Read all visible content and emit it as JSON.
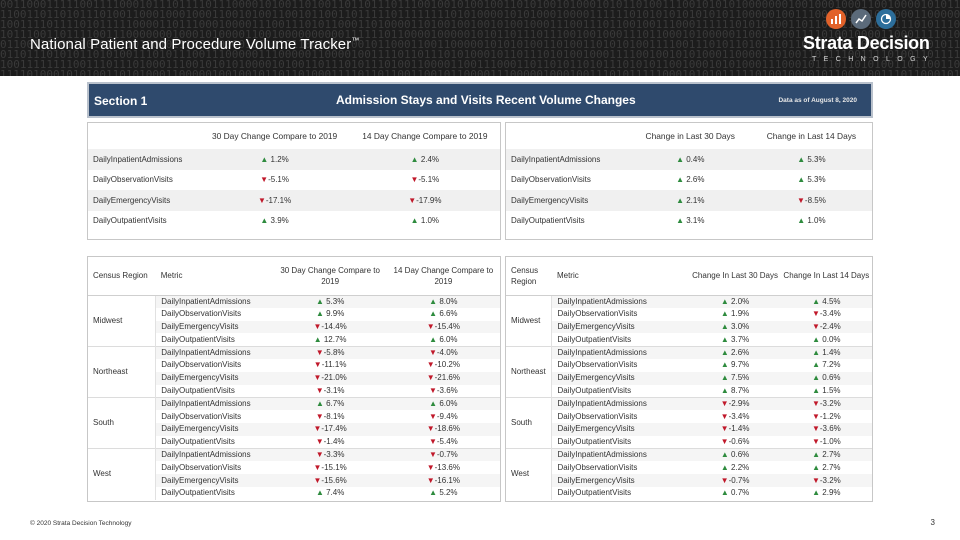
{
  "deck": {
    "title": "National Patient and Procedure Volume Tracker",
    "trademark": "™",
    "logo_name": "Strata Decision",
    "logo_sub": "TECHNOLOGY",
    "logo_icons": [
      "bar-chart-icon",
      "trend-line-icon",
      "pie-chart-icon"
    ],
    "footer_copyright": "© 2020 Strata Decision Technology",
    "page_number": "3"
  },
  "colors": {
    "header_blue": "#2f4a6d",
    "up_green": "#2e8b3e",
    "down_red": "#c0182a",
    "band_dark": "#1c1c1c"
  },
  "section": {
    "label": "Section 1",
    "title": "Admission Stays and Visits Recent Volume Changes",
    "as_of": "Data as of August 8, 2020"
  },
  "summary_left": {
    "headers": [
      "30 Day Change Compare to 2019",
      "14 Day Change Compare to 2019"
    ],
    "rows": [
      {
        "metric": "DailyInpatientAdmissions",
        "c1": {
          "dir": "up",
          "v": "1.2%"
        },
        "c2": {
          "dir": "up",
          "v": "2.4%"
        }
      },
      {
        "metric": "DailyObservationVisits",
        "c1": {
          "dir": "down",
          "v": "-5.1%"
        },
        "c2": {
          "dir": "down",
          "v": "-5.1%"
        }
      },
      {
        "metric": "DailyEmergencyVisits",
        "c1": {
          "dir": "down",
          "v": "-17.1%"
        },
        "c2": {
          "dir": "down",
          "v": "-17.9%"
        }
      },
      {
        "metric": "DailyOutpatientVisits",
        "c1": {
          "dir": "up",
          "v": "3.9%"
        },
        "c2": {
          "dir": "up",
          "v": "1.0%"
        }
      }
    ]
  },
  "summary_right": {
    "headers": [
      "Change in Last 30 Days",
      "Change in Last 14 Days"
    ],
    "rows": [
      {
        "metric": "DailyInpatientAdmissions",
        "c1": {
          "dir": "up",
          "v": "0.4%"
        },
        "c2": {
          "dir": "up",
          "v": "5.3%"
        }
      },
      {
        "metric": "DailyObservationVisits",
        "c1": {
          "dir": "up",
          "v": "2.6%"
        },
        "c2": {
          "dir": "up",
          "v": "5.3%"
        }
      },
      {
        "metric": "DailyEmergencyVisits",
        "c1": {
          "dir": "up",
          "v": "2.1%"
        },
        "c2": {
          "dir": "down",
          "v": "-8.5%"
        }
      },
      {
        "metric": "DailyOutpatientVisits",
        "c1": {
          "dir": "up",
          "v": "3.1%"
        },
        "c2": {
          "dir": "up",
          "v": "1.0%"
        }
      }
    ]
  },
  "detail_left": {
    "headers": {
      "region": "Census Region",
      "metric": "Metric",
      "c1": "30 Day Change Compare to 2019",
      "c2": "14 Day Change Compare to 2019"
    },
    "groups": [
      {
        "region": "Midwest",
        "rows": [
          {
            "metric": "DailyInpatientAdmissions",
            "c1": {
              "dir": "up",
              "v": "5.3%"
            },
            "c2": {
              "dir": "up",
              "v": "8.0%"
            }
          },
          {
            "metric": "DailyObservationVisits",
            "c1": {
              "dir": "up",
              "v": "9.9%"
            },
            "c2": {
              "dir": "up",
              "v": "6.6%"
            }
          },
          {
            "metric": "DailyEmergencyVisits",
            "c1": {
              "dir": "down",
              "v": "-14.4%"
            },
            "c2": {
              "dir": "down",
              "v": "-15.4%"
            }
          },
          {
            "metric": "DailyOutpatientVisits",
            "c1": {
              "dir": "up",
              "v": "12.7%"
            },
            "c2": {
              "dir": "up",
              "v": "6.0%"
            }
          }
        ]
      },
      {
        "region": "Northeast",
        "rows": [
          {
            "metric": "DailyInpatientAdmissions",
            "c1": {
              "dir": "down",
              "v": "-5.8%"
            },
            "c2": {
              "dir": "down",
              "v": "-4.0%"
            }
          },
          {
            "metric": "DailyObservationVisits",
            "c1": {
              "dir": "down",
              "v": "-11.1%"
            },
            "c2": {
              "dir": "down",
              "v": "-10.2%"
            }
          },
          {
            "metric": "DailyEmergencyVisits",
            "c1": {
              "dir": "down",
              "v": "-21.0%"
            },
            "c2": {
              "dir": "down",
              "v": "-21.6%"
            }
          },
          {
            "metric": "DailyOutpatientVisits",
            "c1": {
              "dir": "down",
              "v": "-3.1%"
            },
            "c2": {
              "dir": "down",
              "v": "-3.6%"
            }
          }
        ]
      },
      {
        "region": "South",
        "rows": [
          {
            "metric": "DailyInpatientAdmissions",
            "c1": {
              "dir": "up",
              "v": "6.7%"
            },
            "c2": {
              "dir": "up",
              "v": "6.0%"
            }
          },
          {
            "metric": "DailyObservationVisits",
            "c1": {
              "dir": "down",
              "v": "-8.1%"
            },
            "c2": {
              "dir": "down",
              "v": "-9.4%"
            }
          },
          {
            "metric": "DailyEmergencyVisits",
            "c1": {
              "dir": "down",
              "v": "-17.4%"
            },
            "c2": {
              "dir": "down",
              "v": "-18.6%"
            }
          },
          {
            "metric": "DailyOutpatientVisits",
            "c1": {
              "dir": "down",
              "v": "-1.4%"
            },
            "c2": {
              "dir": "down",
              "v": "-5.4%"
            }
          }
        ]
      },
      {
        "region": "West",
        "rows": [
          {
            "metric": "DailyInpatientAdmissions",
            "c1": {
              "dir": "down",
              "v": "-3.3%"
            },
            "c2": {
              "dir": "down",
              "v": "-0.7%"
            }
          },
          {
            "metric": "DailyObservationVisits",
            "c1": {
              "dir": "down",
              "v": "-15.1%"
            },
            "c2": {
              "dir": "down",
              "v": "-13.6%"
            }
          },
          {
            "metric": "DailyEmergencyVisits",
            "c1": {
              "dir": "down",
              "v": "-15.6%"
            },
            "c2": {
              "dir": "down",
              "v": "-16.1%"
            }
          },
          {
            "metric": "DailyOutpatientVisits",
            "c1": {
              "dir": "up",
              "v": "7.4%"
            },
            "c2": {
              "dir": "up",
              "v": "5.2%"
            }
          }
        ]
      }
    ]
  },
  "detail_right": {
    "headers": {
      "region": "Census Region",
      "metric": "Metric",
      "c1": "Change In Last 30 Days",
      "c2": "Change In Last 14 Days"
    },
    "groups": [
      {
        "region": "Midwest",
        "rows": [
          {
            "metric": "DailyInpatientAdmissions",
            "c1": {
              "dir": "up",
              "v": "2.0%"
            },
            "c2": {
              "dir": "up",
              "v": "4.5%"
            }
          },
          {
            "metric": "DailyObservationVisits",
            "c1": {
              "dir": "up",
              "v": "1.9%"
            },
            "c2": {
              "dir": "down",
              "v": "-3.4%"
            }
          },
          {
            "metric": "DailyEmergencyVisits",
            "c1": {
              "dir": "up",
              "v": "3.0%"
            },
            "c2": {
              "dir": "down",
              "v": "-2.4%"
            }
          },
          {
            "metric": "DailyOutpatientVisits",
            "c1": {
              "dir": "up",
              "v": "3.7%"
            },
            "c2": {
              "dir": "up",
              "v": "0.0%"
            }
          }
        ]
      },
      {
        "region": "Northeast",
        "rows": [
          {
            "metric": "DailyInpatientAdmissions",
            "c1": {
              "dir": "up",
              "v": "2.6%"
            },
            "c2": {
              "dir": "up",
              "v": "1.4%"
            }
          },
          {
            "metric": "DailyObservationVisits",
            "c1": {
              "dir": "up",
              "v": "9.7%"
            },
            "c2": {
              "dir": "up",
              "v": "7.2%"
            }
          },
          {
            "metric": "DailyEmergencyVisits",
            "c1": {
              "dir": "up",
              "v": "7.5%"
            },
            "c2": {
              "dir": "up",
              "v": "0.6%"
            }
          },
          {
            "metric": "DailyOutpatientVisits",
            "c1": {
              "dir": "up",
              "v": "8.7%"
            },
            "c2": {
              "dir": "up",
              "v": "1.5%"
            }
          }
        ]
      },
      {
        "region": "South",
        "rows": [
          {
            "metric": "DailyInpatientAdmissions",
            "c1": {
              "dir": "down",
              "v": "-2.9%"
            },
            "c2": {
              "dir": "down",
              "v": "-3.2%"
            }
          },
          {
            "metric": "DailyObservationVisits",
            "c1": {
              "dir": "down",
              "v": "-3.4%"
            },
            "c2": {
              "dir": "down",
              "v": "-1.2%"
            }
          },
          {
            "metric": "DailyEmergencyVisits",
            "c1": {
              "dir": "down",
              "v": "-1.4%"
            },
            "c2": {
              "dir": "down",
              "v": "-3.6%"
            }
          },
          {
            "metric": "DailyOutpatientVisits",
            "c1": {
              "dir": "down",
              "v": "-0.6%"
            },
            "c2": {
              "dir": "down",
              "v": "-1.0%"
            }
          }
        ]
      },
      {
        "region": "West",
        "rows": [
          {
            "metric": "DailyInpatientAdmissions",
            "c1": {
              "dir": "up",
              "v": "0.6%"
            },
            "c2": {
              "dir": "up",
              "v": "2.7%"
            }
          },
          {
            "metric": "DailyObservationVisits",
            "c1": {
              "dir": "up",
              "v": "2.2%"
            },
            "c2": {
              "dir": "up",
              "v": "2.7%"
            }
          },
          {
            "metric": "DailyEmergencyVisits",
            "c1": {
              "dir": "down",
              "v": "-0.7%"
            },
            "c2": {
              "dir": "down",
              "v": "-3.2%"
            }
          },
          {
            "metric": "DailyOutpatientVisits",
            "c1": {
              "dir": "up",
              "v": "0.7%"
            },
            "c2": {
              "dir": "up",
              "v": "2.9%"
            }
          }
        ]
      }
    ]
  }
}
